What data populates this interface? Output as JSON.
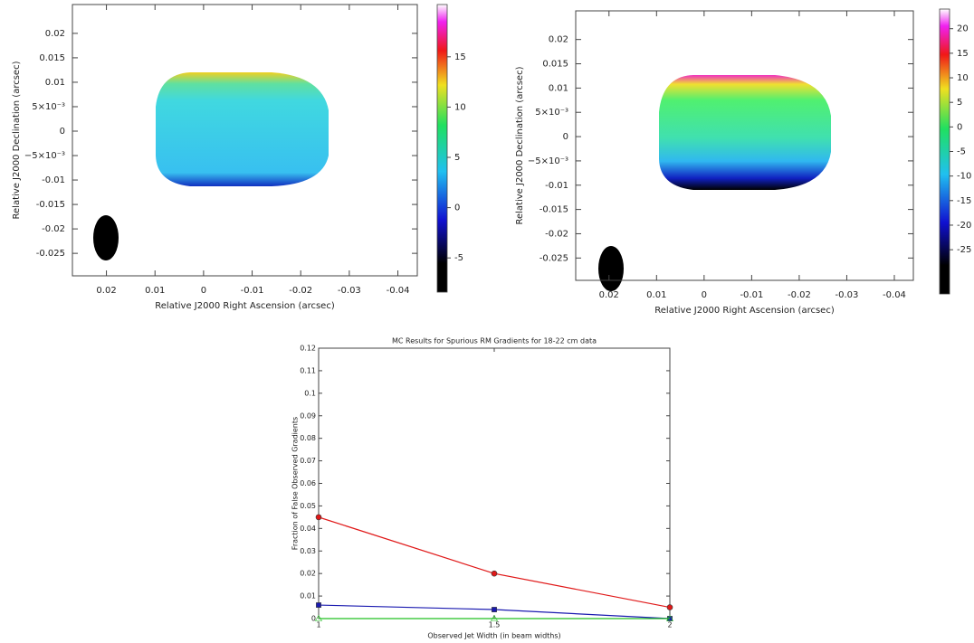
{
  "chart_data": [
    {
      "type": "map",
      "xlabel": "Relative J2000 Right Ascension (arcsec)",
      "ylabel": "Relative J2000 Declination (arcsec)",
      "xlim": [
        0.027,
        -0.044
      ],
      "xticks": [
        0.02,
        0.01,
        0,
        -0.01,
        -0.02,
        -0.03,
        -0.04
      ],
      "ylim": [
        -0.0296,
        0.0259
      ],
      "yticks": [
        0.02,
        0.015,
        0.01,
        {
          "value": 0.005,
          "label": "5×10⁻³"
        },
        0,
        {
          "value": -0.005,
          "label": "−5×10⁻³"
        },
        -0.01,
        -0.015,
        -0.02,
        -0.025
      ],
      "colorbar": {
        "lim": [
          -8.4,
          20.2
        ],
        "ticks": [
          15,
          10,
          5,
          0,
          -5
        ]
      }
    },
    {
      "type": "map",
      "xlabel": "Relative J2000 Right Ascension (arcsec)",
      "ylabel": "Relative J2000 Declination (arcsec)",
      "xlim": [
        0.027,
        -0.044
      ],
      "xticks": [
        0.02,
        0.01,
        0,
        -0.01,
        -0.02,
        -0.03,
        -0.04
      ],
      "ylim": [
        -0.0296,
        0.0259
      ],
      "yticks": [
        0.02,
        0.015,
        0.01,
        {
          "value": 0.005,
          "label": "5×10⁻³"
        },
        0,
        {
          "value": -0.005,
          "label": "−5×10⁻³"
        },
        -0.01,
        -0.015,
        -0.02,
        -0.025
      ],
      "colorbar": {
        "lim": [
          -34,
          24
        ],
        "ticks": [
          20,
          15,
          10,
          5,
          0,
          -5,
          -10,
          -15,
          -20,
          -25
        ]
      }
    },
    {
      "type": "line",
      "title": "MC Results for Spurious RM Gradients for 18-22 cm data",
      "xlabel": "Observed Jet Width (in beam widths)",
      "ylabel": "Fraction of False Observed Gradients",
      "x": [
        1,
        1.5,
        2
      ],
      "xlim": [
        1,
        2
      ],
      "xticks": [
        1,
        1.5,
        2
      ],
      "ylim": [
        0,
        0.12
      ],
      "yticks": [
        0,
        0.01,
        0.02,
        0.03,
        0.04,
        0.05,
        0.06,
        0.07,
        0.08,
        0.09,
        0.1,
        0.11,
        0.12
      ],
      "series": [
        {
          "color": "#e01818",
          "marker": "circle",
          "values": [
            0.045,
            0.02,
            0.005
          ]
        },
        {
          "color": "#1a1ab0",
          "marker": "square",
          "values": [
            0.006,
            0.004,
            0
          ]
        },
        {
          "color": "#20c020",
          "marker": "triangle",
          "values": [
            0,
            0,
            0
          ]
        }
      ]
    }
  ]
}
